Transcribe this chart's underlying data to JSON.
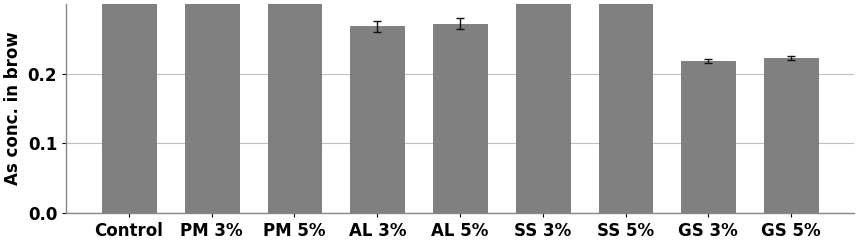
{
  "categories": [
    "Control",
    "PM 3%",
    "PM 5%",
    "AL 3%",
    "AL 5%",
    "SS 3%",
    "SS 5%",
    "GS 3%",
    "GS 5%"
  ],
  "values": [
    0.31,
    0.31,
    0.31,
    0.268,
    0.272,
    0.31,
    0.31,
    0.218,
    0.222
  ],
  "errors": [
    0.0,
    0.0,
    0.0,
    0.008,
    0.008,
    0.0,
    0.0,
    0.003,
    0.003
  ],
  "bar_color": "#808080",
  "bar_edge_color": "#666666",
  "ylabel": "As conc. in brow",
  "ylim": [
    0.0,
    0.3
  ],
  "yticks": [
    0.0,
    0.1,
    0.2
  ],
  "ytick_labels": [
    "0.0",
    "0.1",
    "0.2"
  ],
  "grid_color": "#c0c0c0",
  "background_color": "#ffffff",
  "bar_width": 0.65,
  "error_capsize": 3,
  "error_color": "#111111",
  "ylabel_fontsize": 12,
  "tick_fontsize": 12,
  "xlabel_fontsize": 12
}
